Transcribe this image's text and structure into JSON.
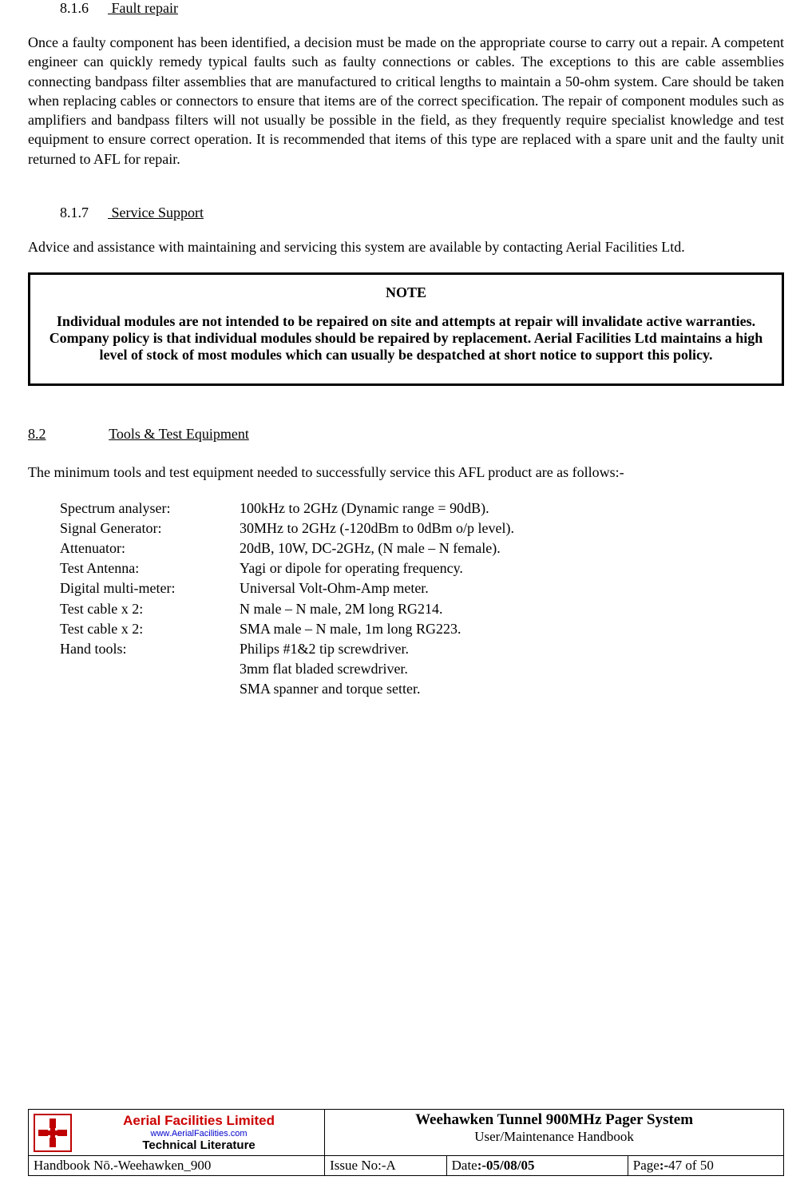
{
  "section_816": {
    "num": "8.1.6",
    "title": "Fault repair",
    "body": "Once a faulty component has been identified, a decision must be made on the appropriate course to carry out a repair. A competent engineer can quickly remedy typical faults such as faulty connections or cables. The exceptions to this are cable assemblies connecting bandpass filter assemblies that are manufactured to critical lengths to maintain a 50-ohm system. Care should be taken when replacing cables or connectors to ensure that items are of the correct specification. The repair of component modules such as amplifiers and bandpass filters will not usually be possible in the field, as they frequently require specialist knowledge and test equipment to ensure correct operation. It is recommended that items of this type are replaced with a spare unit and the faulty unit returned to AFL for repair."
  },
  "section_817": {
    "num": "8.1.7",
    "title": "Service Support",
    "body": "Advice and assistance with maintaining and servicing this system are available by contacting Aerial Facilities Ltd."
  },
  "note": {
    "title": "NOTE",
    "body": "Individual modules are not intended to be repaired on site and attempts at repair will invalidate active warranties. Company policy is that individual modules should be repaired by replacement. Aerial Facilities Ltd maintains a high level of stock of most modules which can usually be despatched at short notice to support this policy."
  },
  "section_82": {
    "num": "8.2",
    "title": "Tools & Test Equipment",
    "intro": "The minimum tools and test equipment needed to successfully service this AFL product are as follows:-"
  },
  "tools": [
    {
      "label": "Spectrum analyser:",
      "value": "100kHz to 2GHz (Dynamic range = 90dB)."
    },
    {
      "label": "Signal Generator:",
      "value": "30MHz to 2GHz (-120dBm to 0dBm o/p level)."
    },
    {
      "label": "Attenuator:",
      "value": "20dB, 10W, DC-2GHz, (N male – N female)."
    },
    {
      "label": "Test Antenna:",
      "value": "Yagi or dipole for operating frequency."
    },
    {
      "label": "Digital multi-meter:",
      "value": "Universal Volt-Ohm-Amp meter."
    },
    {
      "label": "Test cable x 2:",
      "value": "N male – N male, 2M long RG214."
    },
    {
      "label": "Test cable x 2:",
      "value": "SMA male – N male, 1m long RG223."
    },
    {
      "label": "Hand tools:",
      "value": "Philips #1&2 tip screwdriver."
    },
    {
      "label": "",
      "value": "3mm flat bladed screwdriver."
    },
    {
      "label": "",
      "value": "SMA spanner and torque setter."
    }
  ],
  "footer": {
    "logo_top": "Aerial  Facilities  Limited",
    "logo_mid": "www.AerialFacilities.com",
    "logo_bot": "Technical Literature",
    "doc_title": "Weehawken Tunnel 900MHz Pager System",
    "doc_subtitle": "User/Maintenance Handbook",
    "handbook_label": "Handbook Nō.-Weehawken_900",
    "issue_label": "Issue No:-",
    "issue_value": "A",
    "date_label": "Date",
    "date_value": ":-05/08/05",
    "page_label": "Page",
    "page_value": ":-",
    "page_num": "47 of 50"
  }
}
